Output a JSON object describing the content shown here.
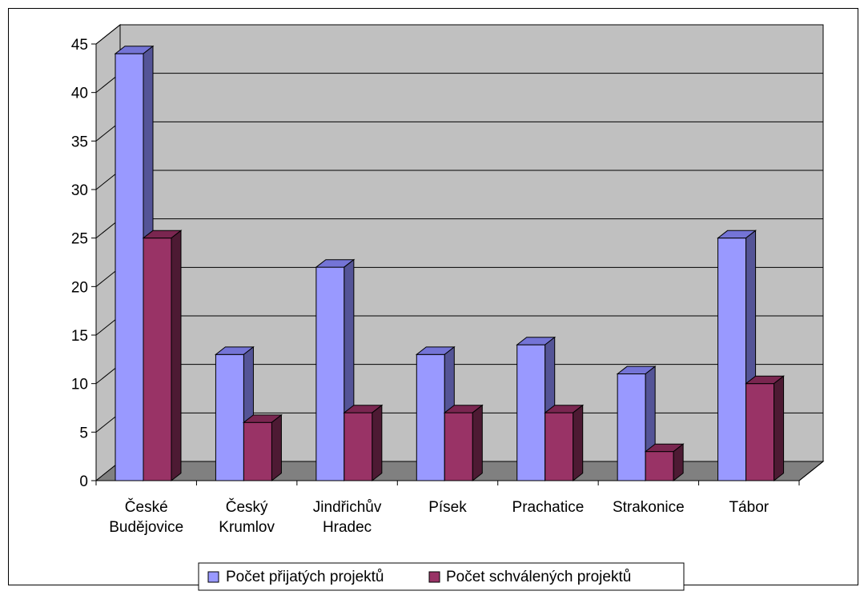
{
  "chart_data": {
    "type": "bar",
    "subtype": "3d-clustered-column",
    "categories": [
      "České Budějovice",
      "Český Krumlov",
      "Jindřichův Hradec",
      "Písek",
      "Prachatice",
      "Strakonice",
      "Tábor"
    ],
    "category_lines": [
      [
        "České",
        "Budějovice"
      ],
      [
        "Český",
        "Krumlov"
      ],
      [
        "Jindřichův",
        "Hradec"
      ],
      [
        "Písek"
      ],
      [
        "Prachatice"
      ],
      [
        "Strakonice"
      ],
      [
        "Tábor"
      ]
    ],
    "series": [
      {
        "name": "Počet přijatých projektů",
        "values": [
          44,
          13,
          22,
          13,
          14,
          11,
          25
        ],
        "color": "#9999ff",
        "top": "#7474d6",
        "side": "#545497"
      },
      {
        "name": "Počet schválených projektů",
        "values": [
          25,
          6,
          7,
          7,
          7,
          3,
          10
        ],
        "color": "#993366",
        "top": "#7a2650",
        "side": "#4d1a33"
      }
    ],
    "ylim": [
      0,
      45
    ],
    "yticks": [
      0,
      5,
      10,
      15,
      20,
      25,
      30,
      35,
      40,
      45
    ],
    "grid": true,
    "legend_position": "bottom",
    "wall_color": "#c0c0c0",
    "floor_color": "#808080"
  }
}
